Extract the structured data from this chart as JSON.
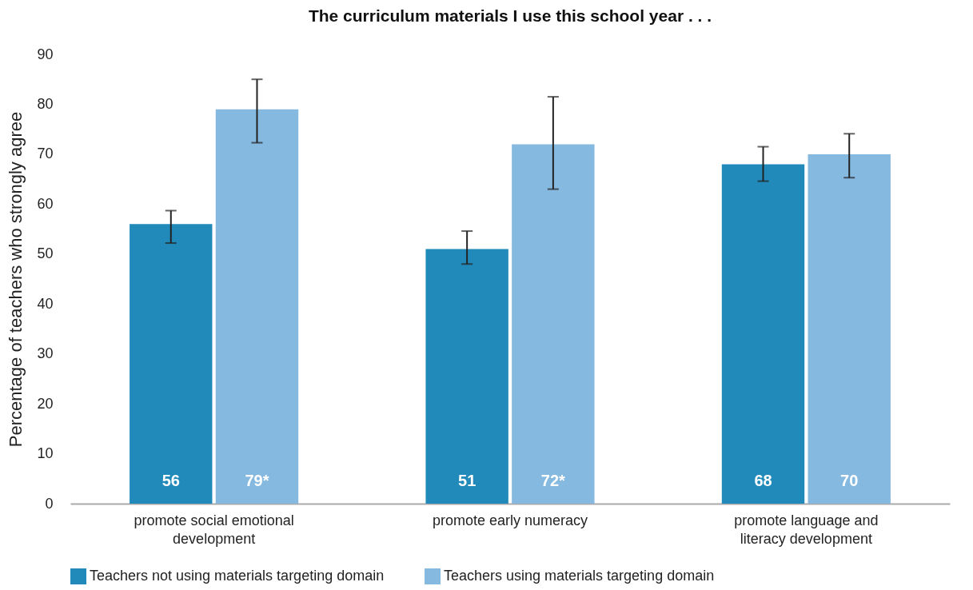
{
  "chart_data": {
    "type": "bar",
    "title": "The curriculum materials I use this school year . . .",
    "ylabel": "Percentage of teachers who strongly agree",
    "categories": [
      "promote social emotional development",
      "promote early numeracy",
      "promote language and literacy development"
    ],
    "series": [
      {
        "name": "Teachers not using materials targeting domain",
        "color": "#218aba",
        "values": [
          56,
          51,
          68
        ],
        "value_labels": [
          "56",
          "51",
          "68"
        ],
        "errors": [
          [
            52.2,
            58.7
          ],
          [
            48.0,
            54.6
          ],
          [
            64.6,
            71.5
          ]
        ]
      },
      {
        "name": "Teachers using materials targeting domain",
        "color": "#85b9e0",
        "values": [
          79,
          72,
          70
        ],
        "value_labels": [
          "79*",
          "72*",
          "70"
        ],
        "errors": [
          [
            72.3,
            85.0
          ],
          [
            63.0,
            81.5
          ],
          [
            65.3,
            74.1
          ]
        ]
      }
    ],
    "ylim": [
      0,
      90
    ],
    "yticks": [
      0,
      10,
      20,
      30,
      40,
      50,
      60,
      70,
      80,
      90
    ],
    "grid": false,
    "legend": "bottom"
  }
}
